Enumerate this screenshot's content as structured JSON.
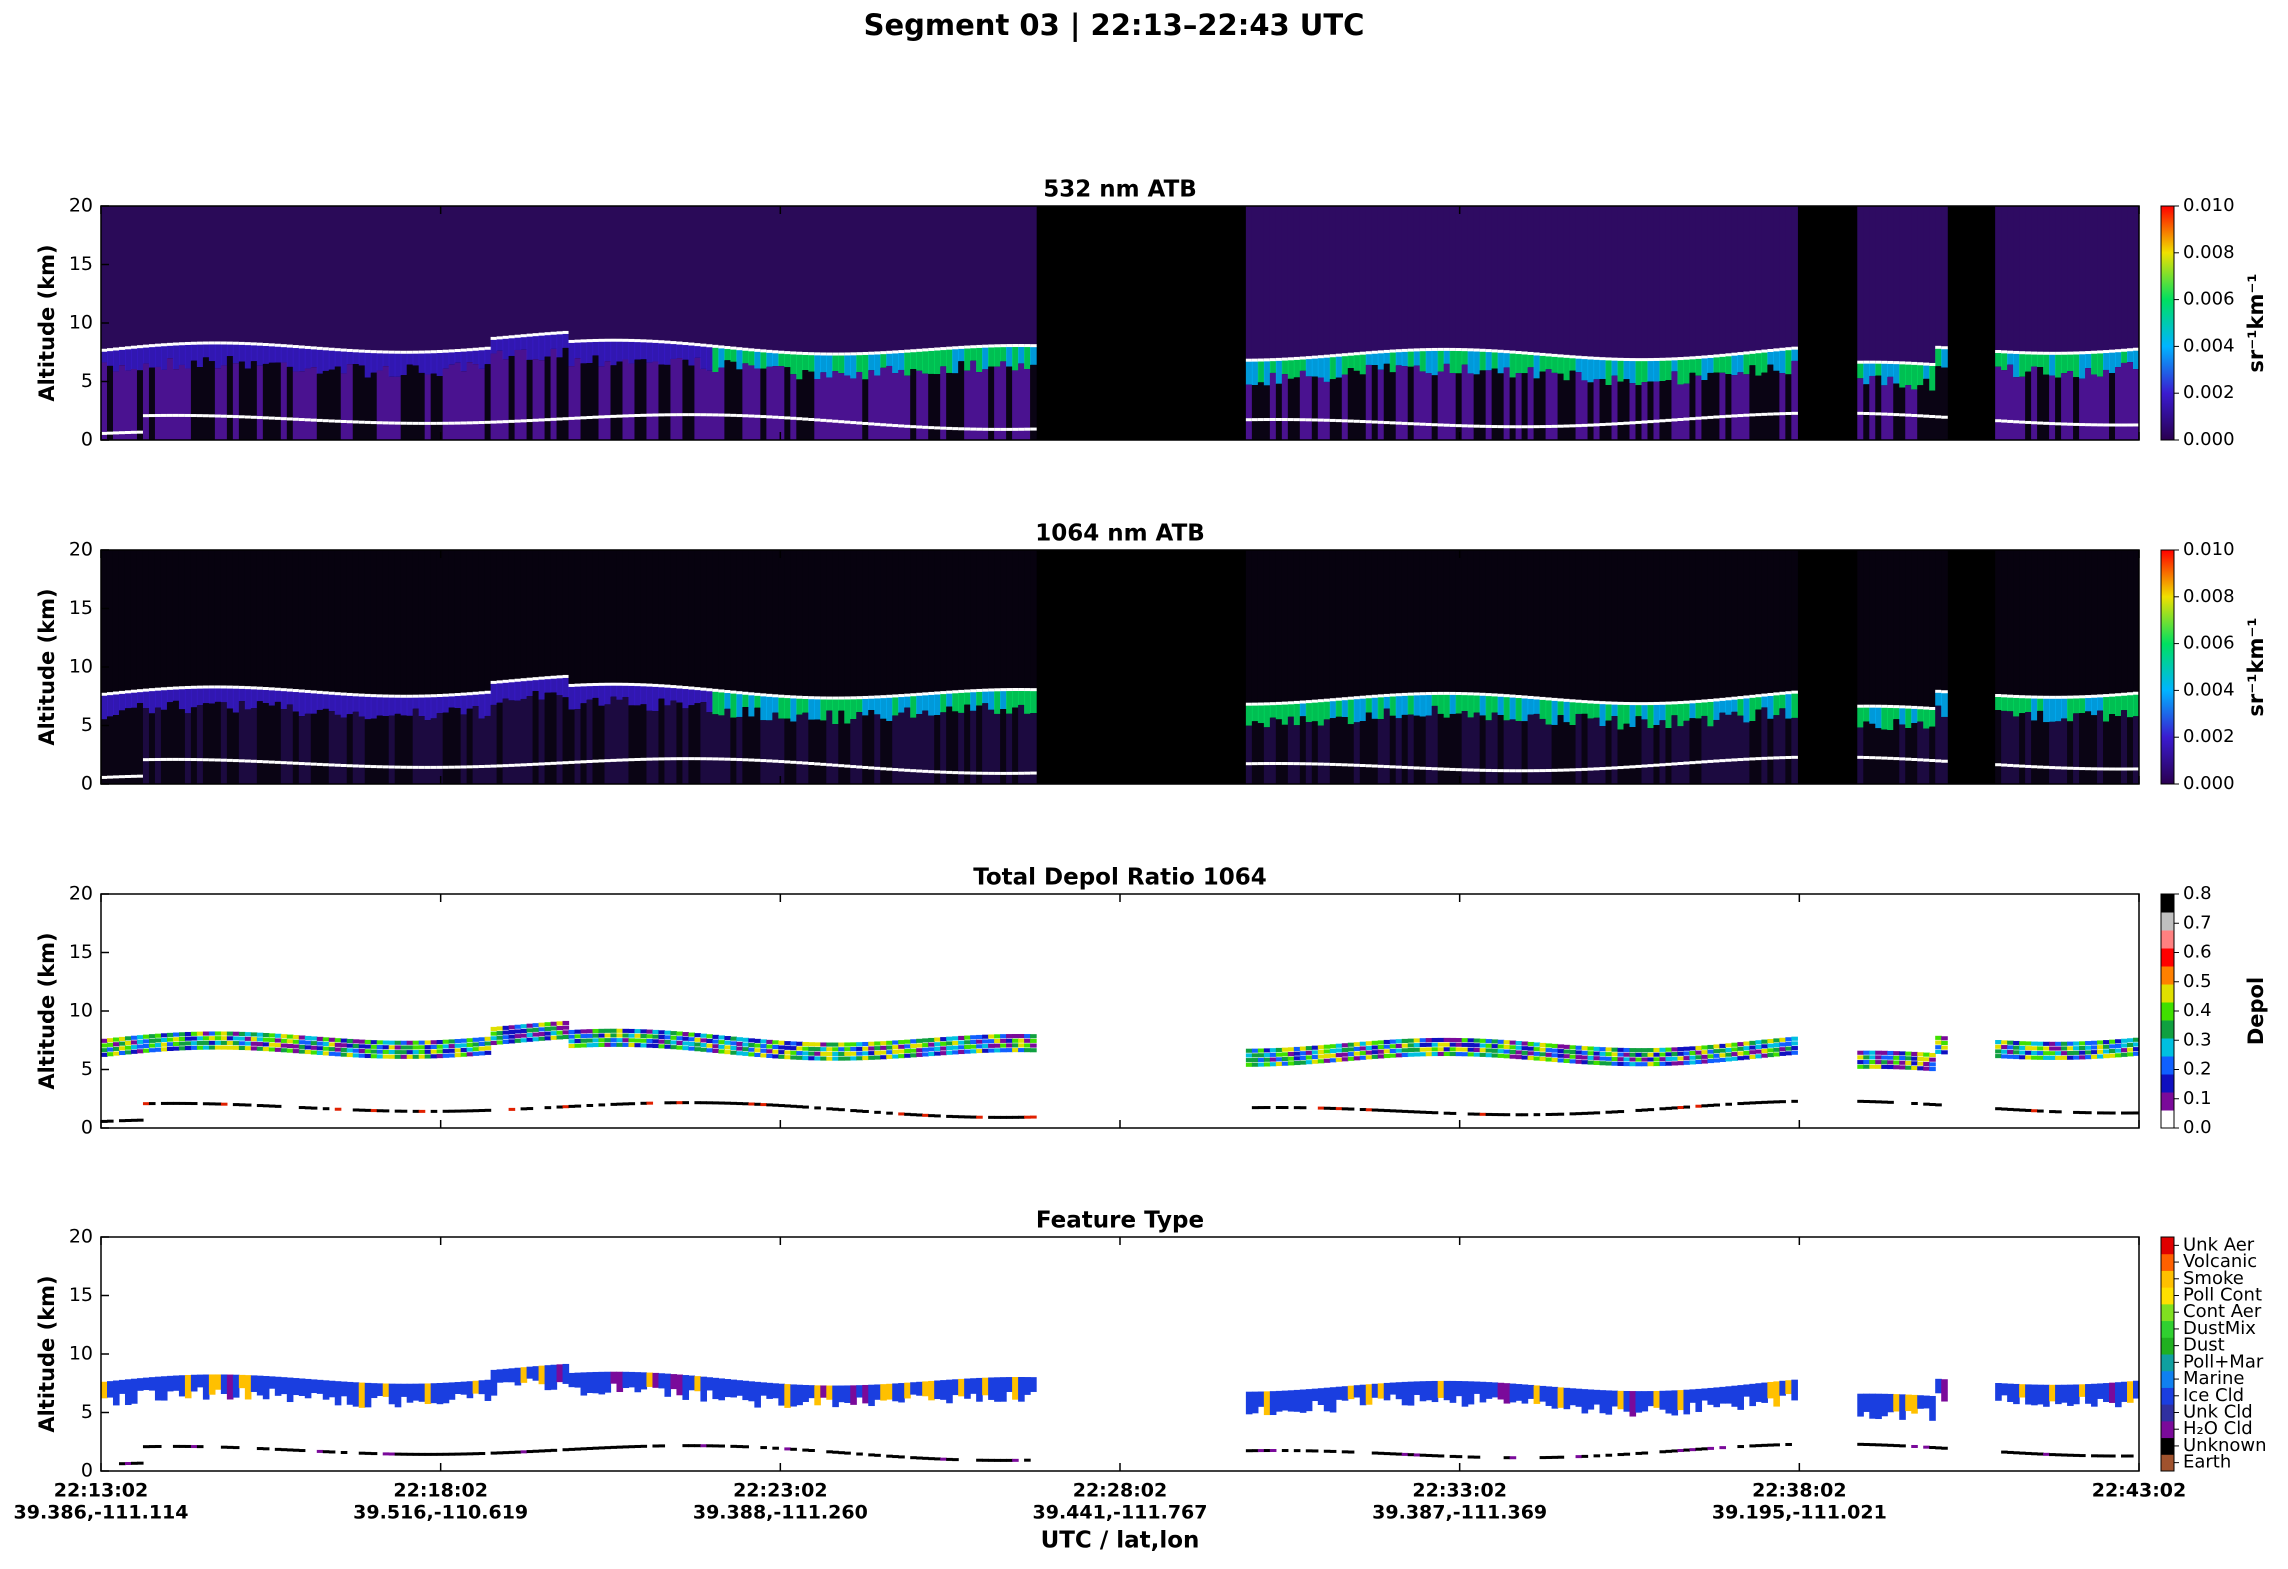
{
  "title": "Segment 03  |  22:13–22:43 UTC",
  "panels": [
    {
      "kind": "atb532",
      "title": "532 nm ATB",
      "y_label": "Altitude (km)",
      "ylim": [
        0,
        20
      ],
      "yticks": [
        0,
        5,
        10,
        15,
        20
      ],
      "colorbar": {
        "label": "sr⁻¹km⁻¹",
        "lim": [
          0,
          0.01
        ],
        "colors": [
          "#2a0050",
          "#3a1bd0",
          "#00b4ff",
          "#00e060",
          "#f0e000",
          "#ff0000"
        ],
        "ticks": [
          {
            "value": 0,
            "label": "0.000"
          },
          {
            "value": 0.002,
            "label": "0.002"
          },
          {
            "value": 0.004,
            "label": "0.004"
          },
          {
            "value": 0.006,
            "label": "0.006"
          },
          {
            "value": 0.008,
            "label": "0.008"
          },
          {
            "value": 0.01,
            "label": "0.010"
          }
        ]
      }
    },
    {
      "kind": "atb1064",
      "title": "1064 nm ATB",
      "y_label": "Altitude (km)",
      "ylim": [
        0,
        20
      ],
      "yticks": [
        0,
        5,
        10,
        15,
        20
      ],
      "colorbar": {
        "label": "sr⁻¹km⁻¹",
        "lim": [
          0,
          0.01
        ],
        "colors": [
          "#2a0050",
          "#3a1bd0",
          "#00b4ff",
          "#00e060",
          "#f0e000",
          "#ff0000"
        ],
        "ticks": [
          {
            "value": 0,
            "label": "0.000"
          },
          {
            "value": 0.002,
            "label": "0.002"
          },
          {
            "value": 0.004,
            "label": "0.004"
          },
          {
            "value": 0.006,
            "label": "0.006"
          },
          {
            "value": 0.008,
            "label": "0.008"
          },
          {
            "value": 0.01,
            "label": "0.010"
          }
        ]
      }
    },
    {
      "kind": "depol",
      "title": "Total Depol Ratio 1064",
      "y_label": "Altitude (km)",
      "ylim": [
        0,
        20
      ],
      "yticks": [
        0,
        5,
        10,
        15,
        20
      ],
      "colorbar": {
        "label": "Depol",
        "lim": [
          0,
          0.8
        ],
        "colors": [
          "#ffffff",
          "#7a0a9a",
          "#1010c0",
          "#1060ff",
          "#00c0e0",
          "#10a040",
          "#40e000",
          "#e0e000",
          "#ff8000",
          "#ff0000",
          "#ff8080",
          "#c0c0c0",
          "#000000"
        ],
        "ticks": [
          {
            "value": 0,
            "label": "0.0"
          },
          0.1,
          0.2,
          0.3,
          0.4,
          0.5,
          0.6,
          0.7,
          0.8
        ]
      }
    },
    {
      "kind": "feature",
      "title": "Feature Type",
      "y_label": "Altitude (km)",
      "ylim": [
        0,
        20
      ],
      "yticks": [
        0,
        5,
        10,
        15,
        20
      ],
      "classes": [
        {
          "name": "Earth",
          "color": "#a0522d"
        },
        {
          "name": "Unknown",
          "color": "#000000"
        },
        {
          "name": "H₂O Cld",
          "color": "#7a0a9a"
        },
        {
          "name": "Unk Cld",
          "color": "#3030a0"
        },
        {
          "name": "Ice Cld",
          "color": "#1a3ee0"
        },
        {
          "name": "Marine",
          "color": "#1080f0"
        },
        {
          "name": "Poll+Mar",
          "color": "#10a0a0"
        },
        {
          "name": "Dust",
          "color": "#20b020"
        },
        {
          "name": "DustMix",
          "color": "#30d030"
        },
        {
          "name": "Cont Aer",
          "color": "#80e020"
        },
        {
          "name": "Poll Cont",
          "color": "#ffe000"
        },
        {
          "name": "Smoke",
          "color": "#ffc000"
        },
        {
          "name": "Volcanic",
          "color": "#ff6000"
        },
        {
          "name": "Unk Aer",
          "color": "#e00000"
        }
      ]
    }
  ],
  "x_axis": {
    "label": "UTC / lat,lon",
    "ticks": [
      {
        "time": "22:13:02",
        "latlon": "39.386,-111.114"
      },
      {
        "time": "22:18:02",
        "latlon": "39.516,-110.619"
      },
      {
        "time": "22:23:02",
        "latlon": "39.388,-111.260"
      },
      {
        "time": "22:28:02",
        "latlon": "39.441,-111.767"
      },
      {
        "time": "22:33:02",
        "latlon": "39.387,-111.369"
      },
      {
        "time": "22:38:02",
        "latlon": "39.195,-111.021"
      },
      {
        "time": "22:43:02"
      }
    ]
  }
}
